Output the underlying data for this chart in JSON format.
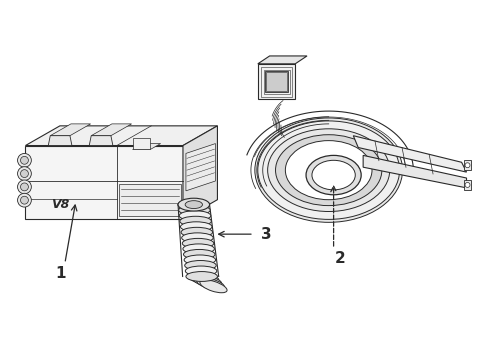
{
  "background_color": "#ffffff",
  "line_color": "#2a2a2a",
  "figsize": [
    4.9,
    3.6
  ],
  "dpi": 100,
  "label_1": "1",
  "label_2": "2",
  "label_3": "3"
}
